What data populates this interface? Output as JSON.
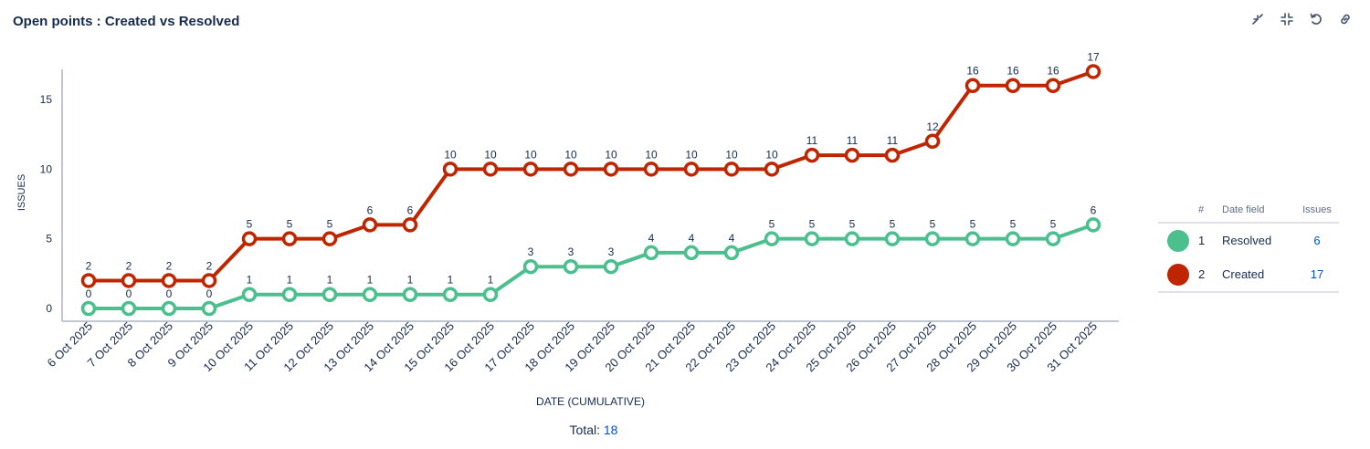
{
  "title": "Open points : Created vs Resolved",
  "toolbar": {
    "icons": [
      "minimize-icon",
      "collapse-icon",
      "refresh-icon",
      "link-icon"
    ]
  },
  "chart_data": {
    "type": "line",
    "title": "",
    "xlabel": "DATE (CUMULATIVE)",
    "ylabel": "ISSUES",
    "ylim": [
      0,
      17
    ],
    "yticks": [
      0,
      5,
      10,
      15
    ],
    "grid": false,
    "categories": [
      "6 Oct 2025",
      "7 Oct 2025",
      "8 Oct 2025",
      "9 Oct 2025",
      "10 Oct 2025",
      "11 Oct 2025",
      "12 Oct 2025",
      "13 Oct 2025",
      "14 Oct 2025",
      "15 Oct 2025",
      "16 Oct 2025",
      "17 Oct 2025",
      "18 Oct 2025",
      "19 Oct 2025",
      "20 Oct 2025",
      "21 Oct 2025",
      "22 Oct 2025",
      "23 Oct 2025",
      "24 Oct 2025",
      "25 Oct 2025",
      "26 Oct 2025",
      "27 Oct 2025",
      "28 Oct 2025",
      "29 Oct 2025",
      "30 Oct 2025",
      "31 Oct 2025"
    ],
    "series": [
      {
        "name": "Created",
        "color": "#bf2600",
        "values": [
          2,
          2,
          2,
          2,
          5,
          5,
          5,
          6,
          6,
          10,
          10,
          10,
          10,
          10,
          10,
          10,
          10,
          10,
          11,
          11,
          11,
          12,
          16,
          16,
          16,
          17
        ]
      },
      {
        "name": "Resolved",
        "color": "#4bbf8e",
        "values": [
          0,
          0,
          0,
          0,
          1,
          1,
          1,
          1,
          1,
          1,
          1,
          3,
          3,
          3,
          4,
          4,
          4,
          5,
          5,
          5,
          5,
          5,
          5,
          5,
          5,
          6
        ]
      }
    ],
    "legend_placement": "right"
  },
  "legend": {
    "headers": {
      "num": "#",
      "field": "Date field",
      "issues": "Issues"
    },
    "rows": [
      {
        "num": "1",
        "field": "Resolved",
        "issues": "6",
        "color": "#4bbf8e"
      },
      {
        "num": "2",
        "field": "Created",
        "issues": "17",
        "color": "#bf2600"
      }
    ]
  },
  "footer": {
    "total_label": "Total:",
    "total_value": "18"
  }
}
